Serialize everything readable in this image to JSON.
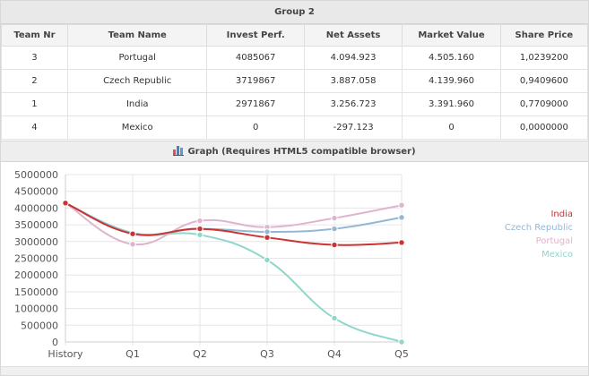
{
  "group": {
    "title": "Group 2"
  },
  "table": {
    "headers": [
      "Team Nr",
      "Team Name",
      "Invest Perf.",
      "Net Assets",
      "Market Value",
      "Share Price"
    ],
    "rows": [
      [
        "3",
        "Portugal",
        "4085067",
        "4.094.923",
        "4.505.160",
        "1,0239200"
      ],
      [
        "2",
        "Czech Republic",
        "3719867",
        "3.887.058",
        "4.139.960",
        "0,9409600"
      ],
      [
        "1",
        "India",
        "2971867",
        "3.256.723",
        "3.391.960",
        "0,7709000"
      ],
      [
        "4",
        "Mexico",
        "0",
        "-297.123",
        "0",
        "0,0000000"
      ]
    ]
  },
  "graph": {
    "header": "Graph (Requires HTML5 compatible browser)",
    "icon": "bar-chart-icon"
  },
  "colors": {
    "India": "#cc3333",
    "Czech Republic": "#94b8d4",
    "Portugal": "#e0b4cc",
    "Mexico": "#8fd6cb"
  },
  "chart_data": {
    "type": "line",
    "categories": [
      "History",
      "Q1",
      "Q2",
      "Q3",
      "Q4",
      "Q5"
    ],
    "ylim": [
      0,
      5000000
    ],
    "yticks": [
      "0",
      "500000",
      "1000000",
      "1500000",
      "2000000",
      "2500000",
      "3000000",
      "3500000",
      "4000000",
      "4500000",
      "5000000"
    ],
    "legend_position": "right",
    "series": [
      {
        "name": "India",
        "values": [
          4150000,
          3230000,
          3380000,
          3120000,
          2900000,
          2970000
        ]
      },
      {
        "name": "Czech Republic",
        "values": [
          4150000,
          3250000,
          3380000,
          3290000,
          3380000,
          3720000
        ]
      },
      {
        "name": "Portugal",
        "values": [
          4150000,
          2920000,
          3620000,
          3430000,
          3700000,
          4085000
        ]
      },
      {
        "name": "Mexico",
        "values": [
          4150000,
          3260000,
          3200000,
          2450000,
          710000,
          0
        ]
      }
    ]
  }
}
